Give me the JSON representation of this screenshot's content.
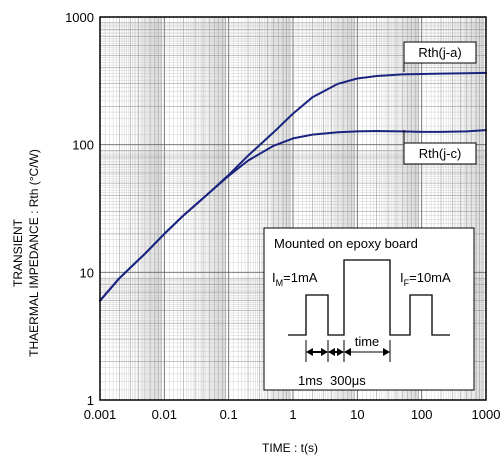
{
  "chart_data": {
    "type": "line",
    "title": "",
    "xlabel": "TIME : t(s)",
    "ylabel_lines": [
      "TRANSIENT",
      "THAERMAL IMPEDANCE : Rth (°C/W)"
    ],
    "x_scale": "log",
    "y_scale": "log",
    "xlim": [
      0.001,
      1000
    ],
    "ylim": [
      1,
      1000
    ],
    "grid": true,
    "x_ticks": [
      0.001,
      0.01,
      0.1,
      1,
      10,
      100,
      1000
    ],
    "x_tick_labels": [
      "0.001",
      "0.01",
      "0.1",
      "1",
      "10",
      "100",
      "1000"
    ],
    "y_ticks": [
      1,
      10,
      100,
      1000
    ],
    "y_tick_labels": [
      "1",
      "10",
      "100",
      "1000"
    ],
    "series": [
      {
        "name": "Rth(j-a)",
        "color": "#1a237e",
        "x": [
          0.001,
          0.002,
          0.005,
          0.01,
          0.02,
          0.05,
          0.1,
          0.2,
          0.5,
          1,
          2,
          5,
          10,
          20,
          50,
          100,
          200,
          500,
          1000
        ],
        "y": [
          6,
          9,
          14,
          20,
          28,
          42,
          58,
          82,
          125,
          175,
          235,
          300,
          330,
          345,
          355,
          358,
          360,
          362,
          365
        ]
      },
      {
        "name": "Rth(j-c)",
        "color": "#1a237e",
        "x": [
          0.001,
          0.002,
          0.005,
          0.01,
          0.02,
          0.05,
          0.1,
          0.2,
          0.5,
          1,
          2,
          5,
          10,
          20,
          50,
          100,
          200,
          500,
          1000
        ],
        "y": [
          6,
          9,
          14,
          20,
          28,
          42,
          57,
          75,
          98,
          112,
          120,
          125,
          127,
          128,
          127,
          126,
          126,
          127,
          130
        ]
      }
    ],
    "callouts": [
      {
        "series": "Rth(j-a)",
        "label": "Rth(j-a)"
      },
      {
        "series": "Rth(j-c)",
        "label": "Rth(j-c)"
      }
    ],
    "inset": {
      "title": "Mounted on epoxy board",
      "im_label": "I",
      "im_sub": "M",
      "im_value": "=1mA",
      "if_label": "I",
      "if_sub": "F",
      "if_value": "=10mA",
      "time_label": "time",
      "dur1_label": "1ms",
      "dur2_label": "300",
      "dur2_unit": "μs"
    }
  }
}
